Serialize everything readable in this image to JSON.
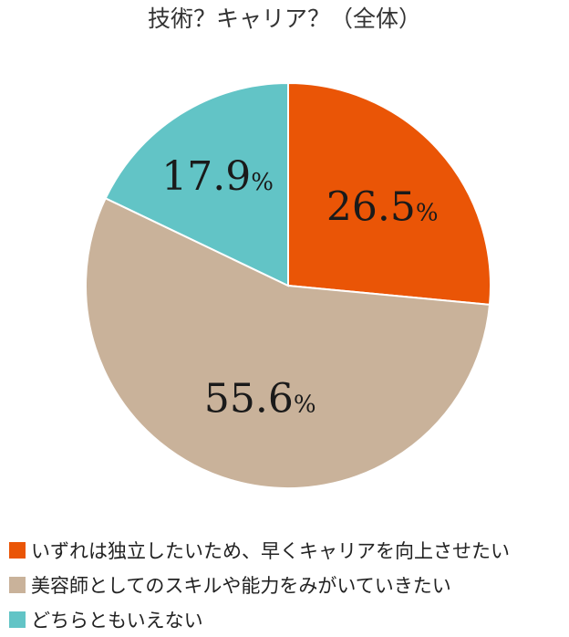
{
  "chart_data": {
    "type": "pie",
    "title": "技術？キャリア？（全体）",
    "unit": "%",
    "slices": [
      {
        "label": "いずれは独立したいため、早くキャリアを向上させたい",
        "value": 26.5,
        "value_text": "26.5",
        "color": "#ea5506"
      },
      {
        "label": "美容師としてのスキルや能力をみがいていきたい",
        "value": 55.6,
        "value_text": "55.6",
        "color": "#c9b29a"
      },
      {
        "label": "どちらともいえない",
        "value": 17.9,
        "value_text": "17.9",
        "color": "#62c4c6"
      }
    ],
    "start": "12 o'clock",
    "direction": "clockwise",
    "legend_position": "bottom-left"
  }
}
